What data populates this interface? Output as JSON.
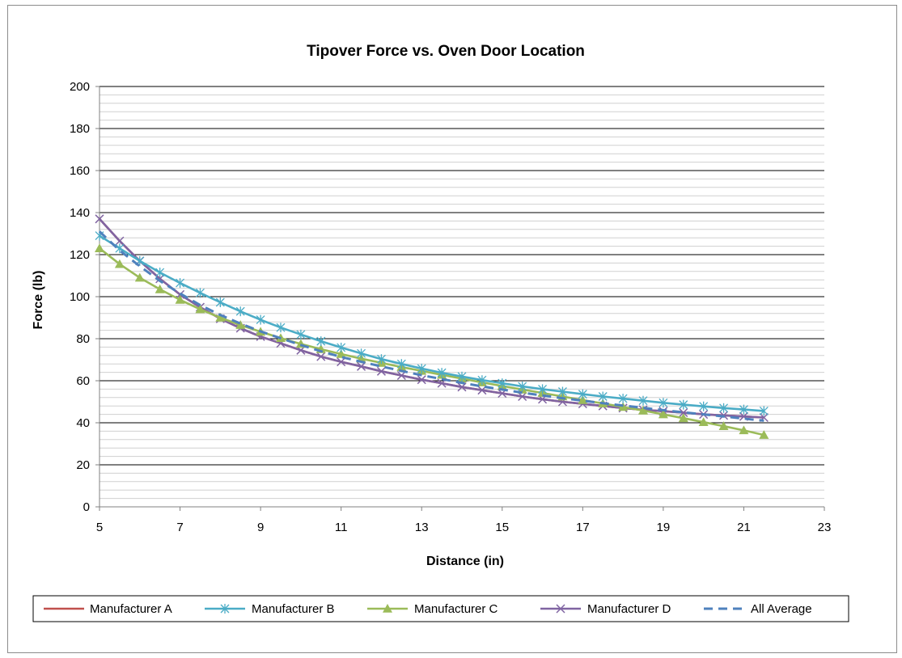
{
  "chart_data": {
    "type": "line",
    "title": "Tipover Force vs. Oven Door Location",
    "xlabel": "Distance (in)",
    "ylabel": "Force (lb)",
    "xlim": [
      5,
      23
    ],
    "ylim": [
      0,
      200
    ],
    "x_ticks": [
      "5",
      "7",
      "9",
      "11",
      "13",
      "15",
      "17",
      "19",
      "21",
      "23"
    ],
    "y_ticks": [
      "0",
      "20",
      "40",
      "60",
      "80",
      "100",
      "120",
      "140",
      "160",
      "180",
      "200"
    ],
    "grid": {
      "major": true,
      "minor": true
    },
    "legend_position": "bottom",
    "x": [
      5.0,
      5.5,
      6.0,
      6.5,
      7.0,
      7.5,
      8.0,
      8.5,
      9.0,
      9.5,
      10.0,
      10.5,
      11.0,
      11.5,
      12.0,
      12.5,
      13.0,
      13.5,
      14.0,
      14.5,
      15.0,
      15.5,
      16.0,
      16.5,
      17.0,
      17.5,
      18.0,
      18.5,
      19.0,
      19.5,
      20.0,
      20.5,
      21.0,
      21.5
    ],
    "series": [
      {
        "name": "Manufacturer A",
        "color": "#c0504d",
        "marker": "none",
        "dash": "solid",
        "values": [
          137,
          126.5,
          117,
          108.5,
          101,
          95,
          89.5,
          85,
          81,
          77.8,
          74.5,
          71.5,
          69,
          66.8,
          64.5,
          62.5,
          60.5,
          58.8,
          57,
          55.5,
          54,
          52.5,
          51.2,
          50,
          49,
          48,
          47,
          46.2,
          45.5,
          44.8,
          44,
          43.5,
          43,
          42.5
        ]
      },
      {
        "name": "Manufacturer B",
        "color": "#4bacc6",
        "marker": "asterisk",
        "dash": "solid",
        "values": [
          129,
          123,
          117,
          111.5,
          106.5,
          101.8,
          97.3,
          93,
          89,
          85.3,
          82,
          78.8,
          75.8,
          73,
          70.3,
          68,
          65.8,
          63.8,
          62,
          60.3,
          58.8,
          57.3,
          56,
          54.8,
          53.6,
          52.5,
          51.5,
          50.5,
          49.5,
          48.6,
          47.8,
          47,
          46.3,
          45.6
        ]
      },
      {
        "name": "Manufacturer C",
        "color": "#9bbb59",
        "marker": "triangle",
        "dash": "solid",
        "values": [
          123,
          115.5,
          109,
          103.5,
          98.5,
          94,
          90,
          86.5,
          83.3,
          80.3,
          77.5,
          75,
          72.7,
          70.5,
          68.5,
          66.5,
          64.7,
          62.8,
          61,
          59.2,
          57.5,
          55.8,
          54.2,
          52.5,
          50.8,
          49.2,
          47.5,
          45.8,
          44,
          42.2,
          40.3,
          38.4,
          36.4,
          34.2
        ]
      },
      {
        "name": "Manufacturer D",
        "color": "#8064a2",
        "marker": "x",
        "dash": "solid",
        "values": [
          137,
          126.5,
          117,
          108.5,
          101,
          95,
          89.5,
          85,
          81,
          77.8,
          74.5,
          71.5,
          69,
          66.8,
          64.5,
          62.5,
          60.5,
          58.8,
          57,
          55.5,
          54,
          52.5,
          51.2,
          50,
          49,
          48,
          47,
          46.2,
          45.5,
          44.8,
          44,
          43.5,
          43,
          42.5
        ]
      },
      {
        "name": "All Average",
        "color": "#4f81bd",
        "marker": "none",
        "dash": "dashed",
        "values": [
          131,
          122,
          114.5,
          107.5,
          101.5,
          96,
          91.3,
          87.2,
          83.5,
          80.2,
          77,
          74,
          71.3,
          69,
          66.8,
          64.7,
          62.6,
          60.8,
          59,
          57.3,
          55.8,
          54.3,
          53,
          51.7,
          50.5,
          49.3,
          48.2,
          47.1,
          46,
          45,
          44,
          43,
          42,
          41
        ]
      }
    ]
  }
}
